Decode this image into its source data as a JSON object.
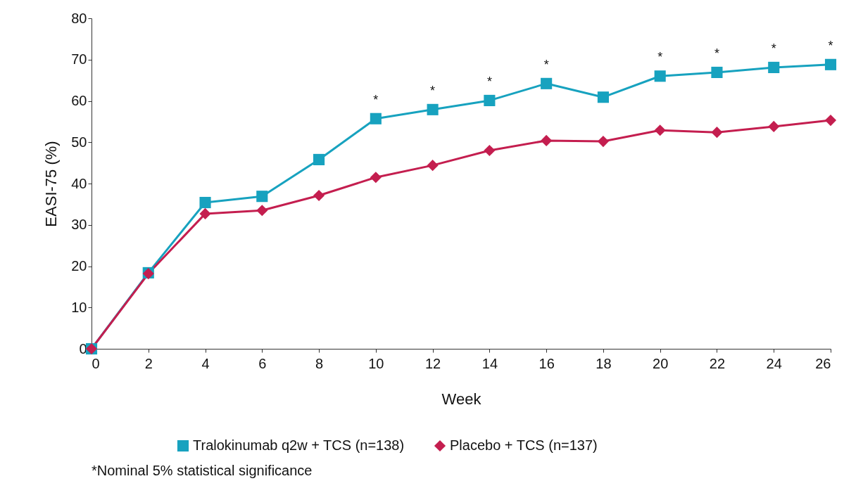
{
  "chart_data": {
    "type": "line",
    "xlabel": "Week",
    "ylabel": "EASI-75 (%)",
    "x": [
      0,
      2,
      4,
      6,
      8,
      10,
      12,
      14,
      16,
      18,
      20,
      22,
      24,
      26
    ],
    "xlim": [
      0,
      26
    ],
    "xticks": [
      0,
      2,
      4,
      6,
      8,
      10,
      12,
      14,
      16,
      18,
      20,
      22,
      24,
      26
    ],
    "ylim": [
      0,
      80
    ],
    "yticks": [
      0,
      10,
      20,
      30,
      40,
      50,
      60,
      70,
      80
    ],
    "grid": false,
    "legend": "bottom",
    "line_style": "solid",
    "series": [
      {
        "name": "Tralokinumab q2w + TCS (n=138)",
        "color": "#17a2bf",
        "marker": "square",
        "values": [
          0,
          18.4,
          35.4,
          36.9,
          45.8,
          55.7,
          57.9,
          60.1,
          64.2,
          60.9,
          66.0,
          66.9,
          68.1,
          68.8
        ]
      },
      {
        "name": "Placebo + TCS (n=137)",
        "color": "#c41e4f",
        "marker": "diamond",
        "values": [
          0,
          18.2,
          32.7,
          33.5,
          37.1,
          41.5,
          44.4,
          48.0,
          50.4,
          50.2,
          52.9,
          52.4,
          53.8,
          55.3
        ]
      }
    ],
    "annotations": [
      {
        "text": "*",
        "x": 10,
        "y": 55.7
      },
      {
        "text": "*",
        "x": 12,
        "y": 57.9
      },
      {
        "text": "*",
        "x": 14,
        "y": 60.1
      },
      {
        "text": "*",
        "x": 16,
        "y": 64.2
      },
      {
        "text": "*",
        "x": 20,
        "y": 66.0
      },
      {
        "text": "*",
        "x": 22,
        "y": 66.9
      },
      {
        "text": "*",
        "x": 24,
        "y": 68.1
      },
      {
        "text": "*",
        "x": 26,
        "y": 68.8
      },
      "*Nominal 5% statistical significance"
    ]
  }
}
